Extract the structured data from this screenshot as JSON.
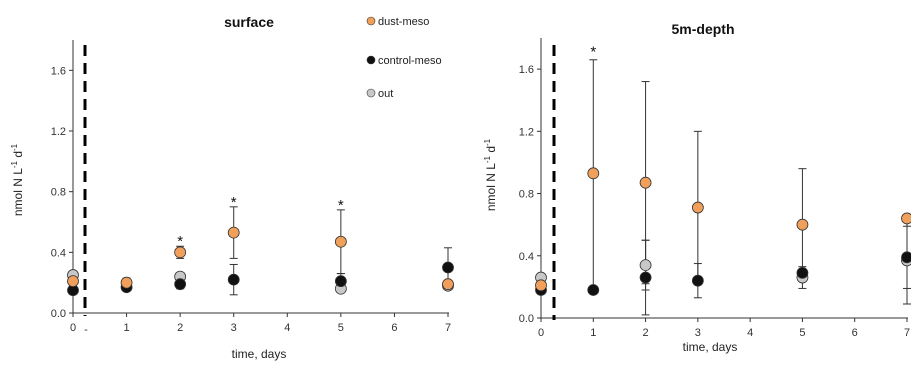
{
  "chart_data": [
    {
      "type": "scatter",
      "title": "surface",
      "xlabel": "time, days",
      "ylabel_main": "nmol N L",
      "ylabel_sup1": "-1",
      "ylabel_mid": " d",
      "ylabel_sup2": "-1",
      "xlim": [
        0,
        7
      ],
      "ylim": [
        0,
        1.8
      ],
      "xticks": [
        "0",
        "1",
        "2",
        "3",
        "4",
        "5",
        "6",
        "7"
      ],
      "yticks": [
        "0.0",
        "0.4",
        "0.8",
        "1.2",
        "1.6"
      ],
      "marker_dash_label": "-",
      "legend": [
        {
          "name": "dust-meso",
          "color": "#f0a05a"
        },
        {
          "name": "control-meso",
          "color": "#111111"
        },
        {
          "name": "out",
          "color": "#c8c8c8"
        }
      ],
      "series": [
        {
          "name": "dust-meso",
          "color": "#f0a05a",
          "points": [
            [
              0,
              0.21,
              0.0
            ],
            [
              1,
              0.2,
              0.03
            ],
            [
              2,
              0.4,
              0.04
            ],
            [
              3,
              0.53,
              0.17
            ],
            [
              5,
              0.47,
              0.21
            ],
            [
              7,
              0.19,
              0.0
            ]
          ]
        },
        {
          "name": "control-meso",
          "color": "#111111",
          "points": [
            [
              0,
              0.15,
              0.0
            ],
            [
              1,
              0.17,
              0.0
            ],
            [
              2,
              0.19,
              0.03
            ],
            [
              3,
              0.22,
              0.1
            ],
            [
              5,
              0.21,
              0.05
            ],
            [
              7,
              0.3,
              0.13
            ]
          ]
        },
        {
          "name": "out",
          "color": "#c8c8c8",
          "points": [
            [
              0,
              0.25,
              0.0
            ],
            [
              2,
              0.24,
              0.0
            ],
            [
              5,
              0.16,
              0.0
            ],
            [
              7,
              0.18,
              0.0
            ]
          ]
        }
      ],
      "stars": [
        {
          "x": 2,
          "y": 0.48
        },
        {
          "x": 3,
          "y": 0.74
        },
        {
          "x": 5,
          "y": 0.72
        }
      ],
      "star_label": "*"
    },
    {
      "type": "scatter",
      "title": "5m-depth",
      "xlabel": "time, days",
      "ylabel_main": "nmol N L",
      "ylabel_sup1": "-1",
      "ylabel_mid": " d",
      "ylabel_sup2": "-1",
      "xlim": [
        0,
        7
      ],
      "ylim": [
        0,
        1.8
      ],
      "xticks": [
        "0",
        "1",
        "2",
        "3",
        "4",
        "5",
        "6",
        "7"
      ],
      "yticks": [
        "0.0",
        "0.4",
        "0.8",
        "1.2",
        "1.6"
      ],
      "series": [
        {
          "name": "dust-meso",
          "color": "#f0a05a",
          "points": [
            [
              0,
              0.21,
              0.0
            ],
            [
              1,
              0.93,
              0.73
            ],
            [
              2,
              0.87,
              0.65
            ],
            [
              3,
              0.71,
              0.49
            ],
            [
              5,
              0.6,
              0.36
            ],
            [
              7,
              0.64,
              0.0
            ]
          ]
        },
        {
          "name": "control-meso",
          "color": "#111111",
          "points": [
            [
              0,
              0.18,
              0.0
            ],
            [
              1,
              0.18,
              0.0
            ],
            [
              2,
              0.26,
              0.24
            ],
            [
              3,
              0.24,
              0.11
            ],
            [
              5,
              0.29,
              0.0
            ],
            [
              7,
              0.39,
              0.2
            ]
          ]
        },
        {
          "name": "out",
          "color": "#c8c8c8",
          "points": [
            [
              0,
              0.26,
              0.0
            ],
            [
              2,
              0.34,
              0.16
            ],
            [
              5,
              0.26,
              0.07
            ],
            [
              7,
              0.37,
              0.28
            ]
          ]
        }
      ],
      "stars": [
        {
          "x": 1,
          "y": 1.72
        }
      ],
      "star_label": "*"
    }
  ]
}
